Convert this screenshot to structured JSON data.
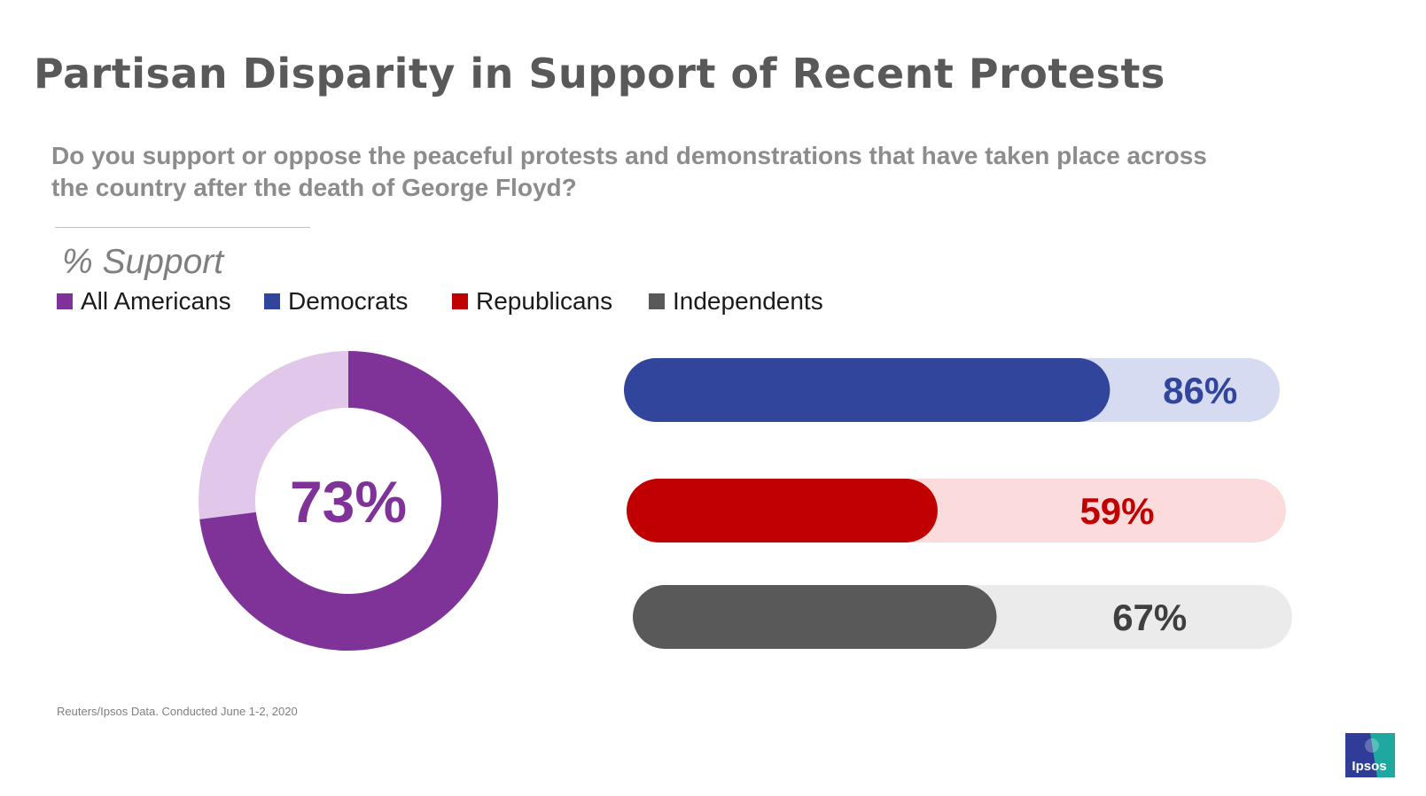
{
  "title": "Partisan Disparity in Support of Recent Protests",
  "question": "Do you support or oppose the peaceful protests and demonstrations that have taken place across the country after the death of George Floyd?",
  "subhead": "% Support",
  "legend": [
    {
      "label": "All Americans",
      "color": "#7f3399"
    },
    {
      "label": "Democrats",
      "color": "#30459b"
    },
    {
      "label": "Republicans",
      "color": "#c00000"
    },
    {
      "label": "Independents",
      "color": "#595959"
    }
  ],
  "source": "Reuters/Ipsos Data. Conducted June 1-2, 2020",
  "logo": {
    "text": "Ipsos",
    "colors": [
      "#2f3c98",
      "#1fa8a0"
    ]
  },
  "chart_data": [
    {
      "type": "pie",
      "title": "",
      "series": [
        {
          "name": "All Americans",
          "values": [
            73,
            27
          ]
        }
      ],
      "categories": [
        "Support",
        ""
      ],
      "center_label": "73%",
      "colors": {
        "value": "#7f3399",
        "remainder": "#e1c8eb",
        "label": "#7f3399"
      }
    },
    {
      "type": "bar",
      "orientation": "horizontal",
      "title": "",
      "categories": [
        "Democrats",
        "Republicans",
        "Independents"
      ],
      "values": [
        86,
        59,
        67
      ],
      "value_labels": [
        "86%",
        "59%",
        "67%"
      ],
      "xlim": [
        0,
        100
      ],
      "colors": [
        {
          "fill": "#30459b",
          "track": "#d6dbf2",
          "label": "#30459b"
        },
        {
          "fill": "#c00000",
          "track": "#fbdbdb",
          "label": "#c00000"
        },
        {
          "fill": "#595959",
          "track": "#ebebeb",
          "label": "#3f3f3f"
        }
      ]
    }
  ]
}
